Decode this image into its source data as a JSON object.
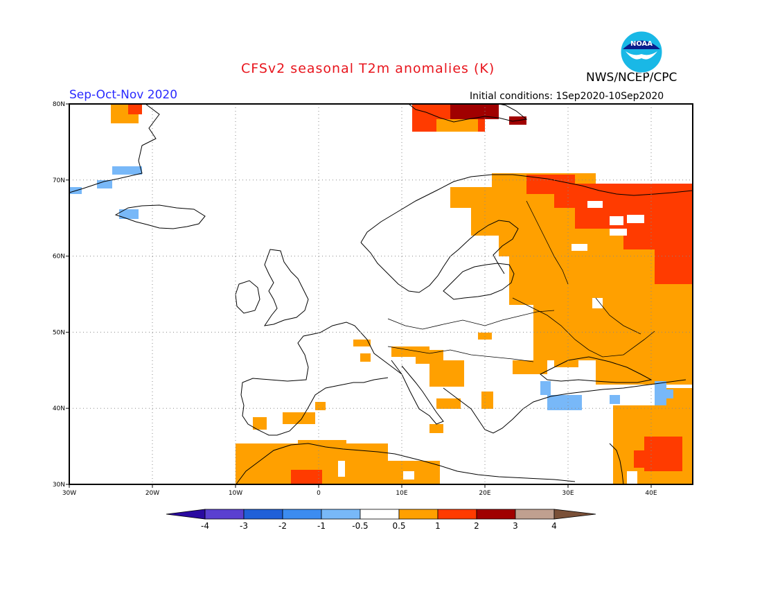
{
  "title": "CFSv2 seasonal T2m anomalies (K)",
  "agency": "NWS/NCEP/CPC",
  "logo_text": "NOAA",
  "season": "Sep-Oct-Nov 2020",
  "initial_conditions": "Initial conditions: 1Sep2020-10Sep2020",
  "map": {
    "projection": "lat-lon",
    "lon_range": [
      -30,
      45
    ],
    "lat_range": [
      30,
      80
    ],
    "lon_ticks": [
      "30W",
      "20W",
      "10W",
      "0",
      "10E",
      "20E",
      "30E",
      "40E"
    ],
    "lat_ticks": [
      "80N",
      "70N",
      "60N",
      "50N",
      "40N",
      "30N"
    ],
    "grid": true
  },
  "colorbar": {
    "labels": [
      "-4",
      "-3",
      "-2",
      "-1",
      "-0.5",
      "0.5",
      "1",
      "2",
      "3",
      "4"
    ],
    "colors": [
      "#2a0aa0",
      "#5a40d0",
      "#2060d8",
      "#3c8cf0",
      "#78b8f8",
      "#ffffff",
      "#ffa000",
      "#ff3b00",
      "#a00000",
      "#c0a090",
      "#7a5038"
    ]
  },
  "colors": {
    "orange": "#ffa000",
    "red": "#ff3b00",
    "darkred": "#a00000",
    "lightblue": "#78b8f8"
  }
}
